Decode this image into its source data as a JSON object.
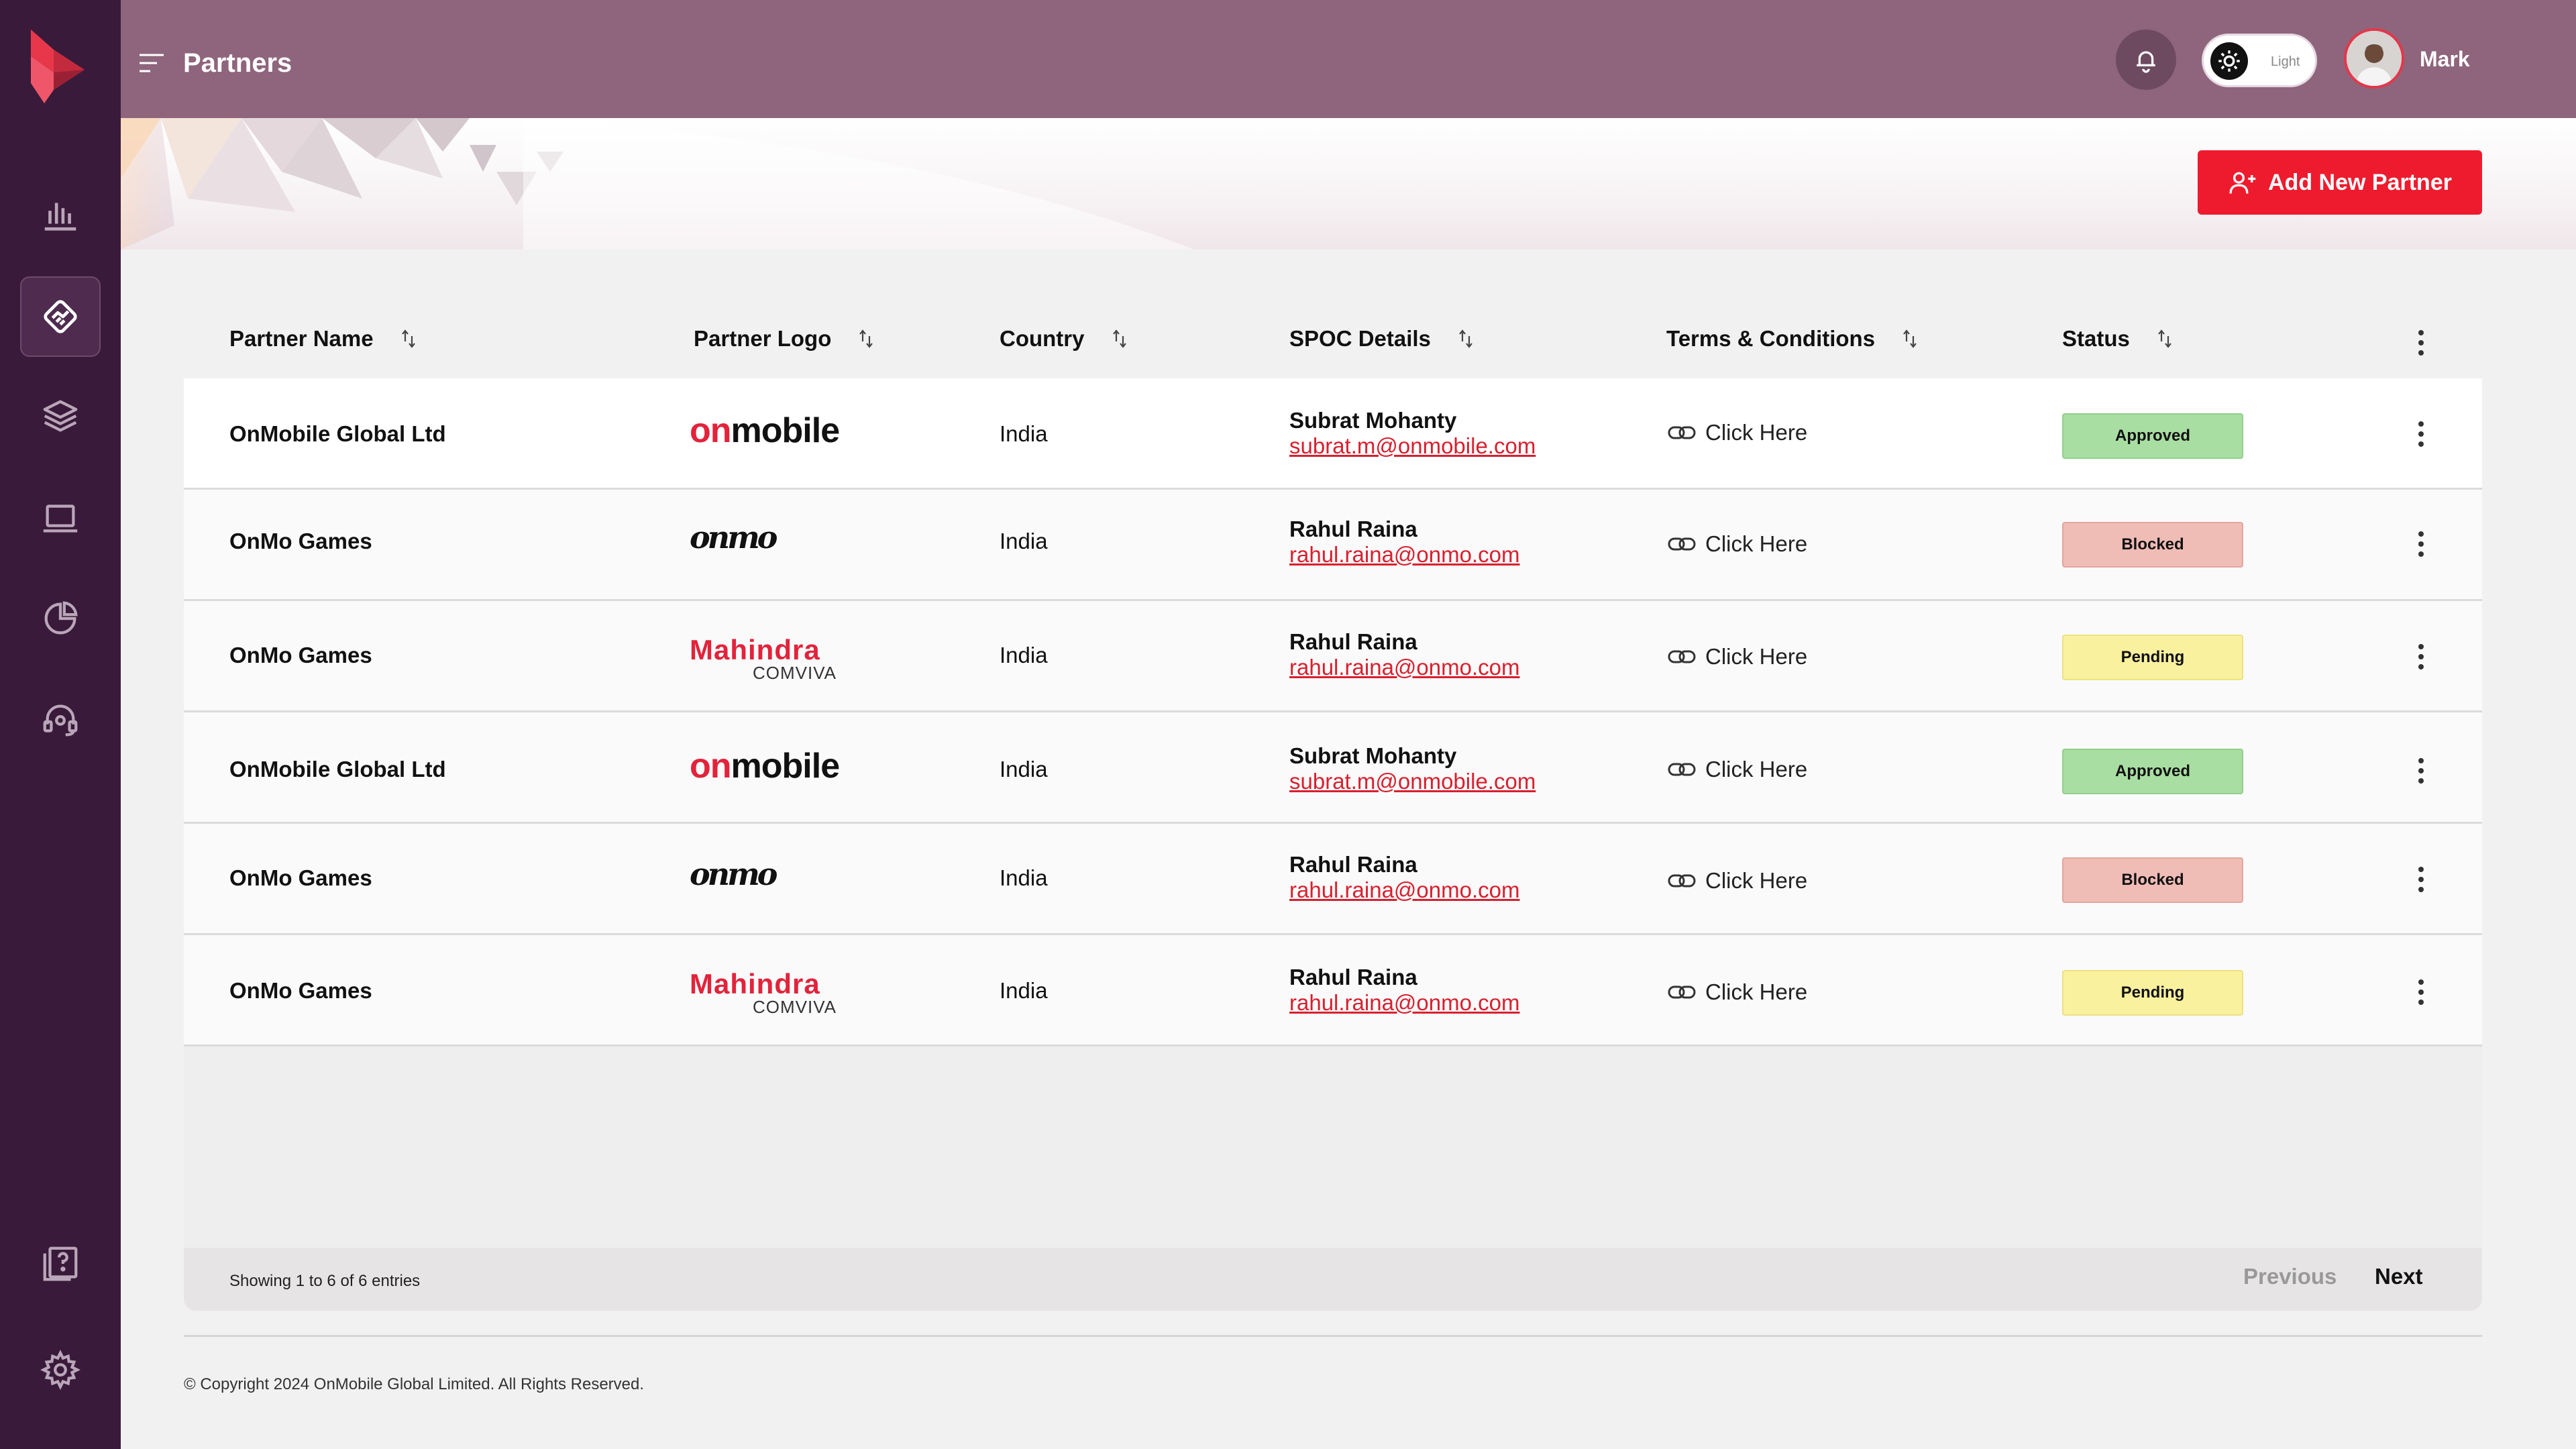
{
  "header": {
    "title": "Partners",
    "theme_label": "Light",
    "user_name": "Mark"
  },
  "sidebar": {
    "items": [
      {
        "icon": "bar-chart-icon"
      },
      {
        "icon": "handshake-icon",
        "active": true
      },
      {
        "icon": "layers-icon"
      },
      {
        "icon": "laptop-icon"
      },
      {
        "icon": "pie-chart-icon"
      },
      {
        "icon": "headset-icon"
      },
      {
        "icon": "help-book-icon"
      },
      {
        "icon": "gear-icon"
      }
    ]
  },
  "actions": {
    "add_partner_label": "Add New Partner"
  },
  "table": {
    "columns": [
      "Partner Name",
      "Partner Logo",
      "Country",
      "SPOC Details",
      "Terms & Conditions",
      "Status"
    ],
    "rows": [
      {
        "name": "OnMobile Global Ltd",
        "logo": "onmobile",
        "country": "India",
        "spoc_name": "Subrat Mohanty",
        "spoc_email": "subrat.m@onmobile.com",
        "terms": "Click Here",
        "status": "Approved"
      },
      {
        "name": "OnMo Games",
        "logo": "onmo",
        "country": "India",
        "spoc_name": "Rahul Raina",
        "spoc_email": "rahul.raina@onmo.com",
        "terms": "Click Here",
        "status": "Blocked"
      },
      {
        "name": "OnMo Games",
        "logo": "mahindra",
        "country": "India",
        "spoc_name": "Rahul Raina",
        "spoc_email": "rahul.raina@onmo.com",
        "terms": "Click Here",
        "status": "Pending"
      },
      {
        "name": "OnMobile Global Ltd",
        "logo": "onmobile",
        "country": "India",
        "spoc_name": "Subrat Mohanty",
        "spoc_email": "subrat.m@onmobile.com",
        "terms": "Click Here",
        "status": "Approved"
      },
      {
        "name": "OnMo Games",
        "logo": "onmo",
        "country": "India",
        "spoc_name": "Rahul Raina",
        "spoc_email": "rahul.raina@onmo.com",
        "terms": "Click Here",
        "status": "Blocked"
      },
      {
        "name": "OnMo Games",
        "logo": "mahindra",
        "country": "India",
        "spoc_name": "Rahul Raina",
        "spoc_email": "rahul.raina@onmo.com",
        "terms": "Click Here",
        "status": "Pending"
      }
    ]
  },
  "logos": {
    "onmobile_on": "on",
    "onmobile_rest": "mobile",
    "onmo": "onmo",
    "mahindra_top": "Mahindra",
    "mahindra_bottom": "COMVIVA"
  },
  "pagination": {
    "summary": "Showing 1 to 6 of 6 entries",
    "previous": "Previous",
    "next": "Next"
  },
  "footer": {
    "copyright": "© Copyright 2024 OnMobile Global Limited. All Rights Reserved."
  },
  "colors": {
    "sidebar": "#3a1a3a",
    "header": "#8e657d",
    "accent": "#ee1b2e",
    "approved": "#a9dea2",
    "blocked": "#f0bcb6",
    "pending": "#faf19f"
  }
}
